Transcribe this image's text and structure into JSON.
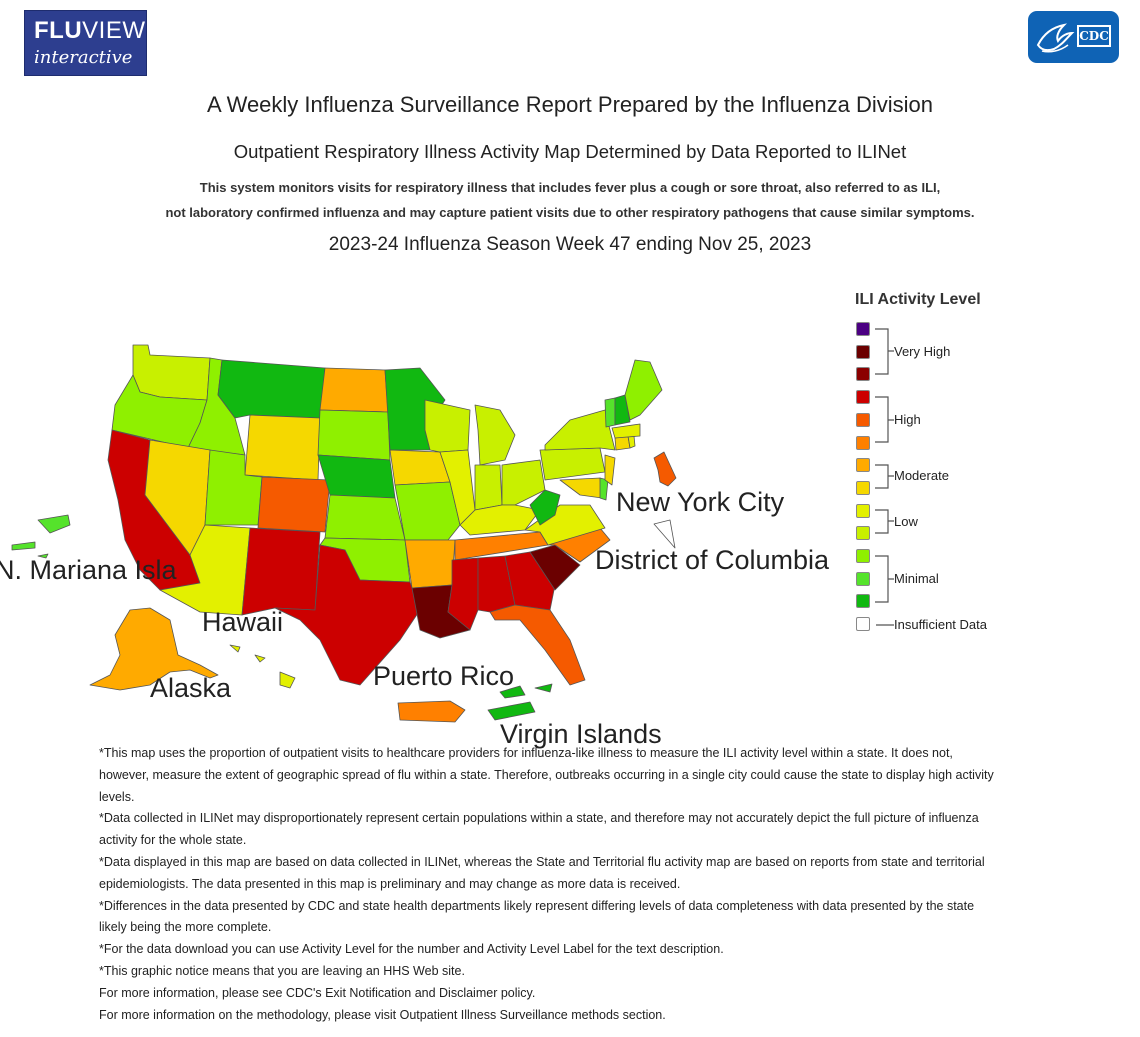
{
  "logos": {
    "fluview_line1_bold": "FLU",
    "fluview_line1_rest": "VIEW",
    "fluview_line2": "interactive",
    "cdc_text": "CDC"
  },
  "header": {
    "title": "A Weekly Influenza Surveillance Report Prepared by the Influenza Division",
    "subtitle": "Outpatient Respiratory Illness Activity Map Determined by Data Reported to ILINet",
    "description_line1": "This system monitors visits for respiratory illness that includes fever plus a cough or sore throat, also referred to as ILI,",
    "description_line2": "not laboratory confirmed influenza and may capture patient visits due to other respiratory pathogens that cause similar symptoms.",
    "season": "2023-24 Influenza Season Week 47 ending Nov 25, 2023"
  },
  "map_labels": {
    "nyc": "New York City",
    "dc": "District of Columbia",
    "mariana": "N. Mariana Isla",
    "hawaii": "Hawaii",
    "alaska": "Alaska",
    "puerto_rico": "Puerto Rico",
    "virgin_islands": "Virgin Islands"
  },
  "colors": {
    "level_13": "#4b0082",
    "level_12": "#6b0000",
    "level_11": "#8b0000",
    "level_10": "#cc0000",
    "level_9": "#f55a00",
    "level_8": "#ff8000",
    "level_7": "#ffaa00",
    "level_6": "#f5d800",
    "level_5": "#e3f000",
    "level_4": "#c8f000",
    "level_3": "#8ff000",
    "level_2": "#55e32b",
    "level_1": "#11b811",
    "insufficient": "#ffffff"
  },
  "legend": {
    "title": "ILI Activity Level",
    "groups": [
      "Very High",
      "High",
      "Moderate",
      "Low",
      "Minimal",
      "Insufficient Data"
    ]
  },
  "notes": [
    "*This map uses the proportion of outpatient visits to healthcare providers for influenza-like illness to measure the ILI activity level within a state. It does not, however, measure the extent of geographic spread of flu within a state. Therefore, outbreaks occurring in a single city could cause the state to display high activity levels.",
    "*Data collected in ILINet may disproportionately represent certain populations within a state, and therefore may not accurately depict the full picture of influenza activity for the whole state.",
    "*Data displayed in this map are based on data collected in ILINet, whereas the State and Territorial flu activity map are based on reports from state and territorial epidemiologists. The data presented in this map is preliminary and may change as more data is received.",
    "*Differences in the data presented by CDC and state health departments likely represent differing levels of data completeness with data presented by the state likely being the more complete.",
    "*For the data download you can use Activity Level for the number and Activity Level Label for the text description.",
    "*This graphic notice means that you are leaving an HHS Web site.",
    "For more information, please see CDC's Exit Notification and Disclaimer policy.",
    "For more information on the methodology, please visit Outpatient Illness Surveillance methods section."
  ]
}
